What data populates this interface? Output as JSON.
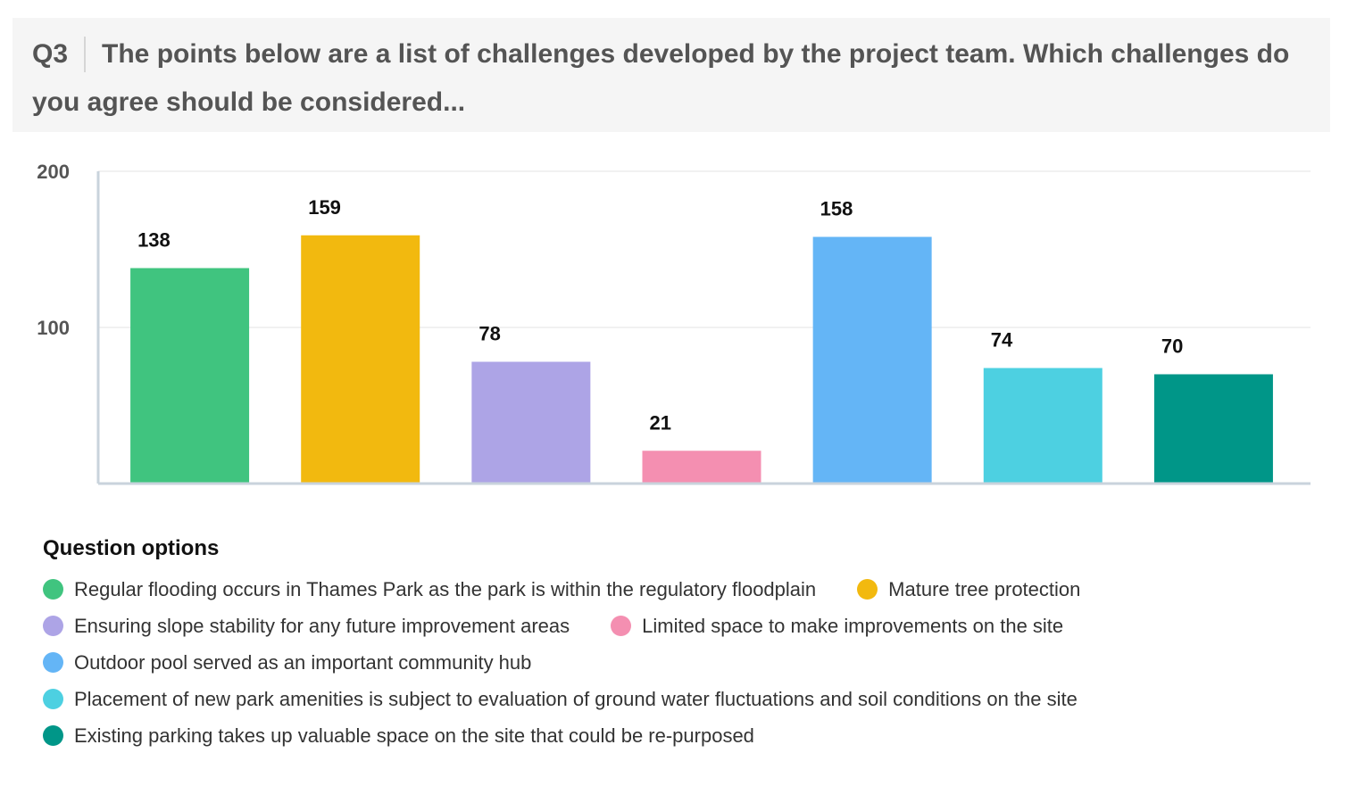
{
  "question": {
    "number": "Q3",
    "text": "The points below are a list of challenges developed by the project team. Which challenges do you agree should be considered..."
  },
  "chart_data": {
    "type": "bar",
    "title": "",
    "xlabel": "",
    "ylabel": "",
    "ylim": [
      0,
      200
    ],
    "yticks": [
      100,
      200
    ],
    "grid": true,
    "legend_position": "bottom",
    "categories": [
      "Regular flooding occurs in Thames Park as the park is within the regulatory floodplain",
      "Mature tree protection",
      "Ensuring slope stability for any future improvement areas",
      "Limited space to make improvements on the site",
      "Outdoor pool served as an important community hub",
      "Placement of new park amenities is subject to evaluation of ground water fluctuations and soil conditions on the site",
      "Existing parking takes up valuable space on the site that could be re-purposed"
    ],
    "values": [
      138,
      159,
      78,
      21,
      158,
      74,
      70
    ],
    "colors": [
      "#40c47f",
      "#f2b90f",
      "#ada4e6",
      "#f48fb1",
      "#64b5f6",
      "#4dd0e1",
      "#009688"
    ]
  },
  "legend": {
    "title": "Question options",
    "rows": [
      [
        0,
        1
      ],
      [
        2,
        3
      ],
      [
        4
      ],
      [
        5
      ],
      [
        6
      ]
    ]
  }
}
